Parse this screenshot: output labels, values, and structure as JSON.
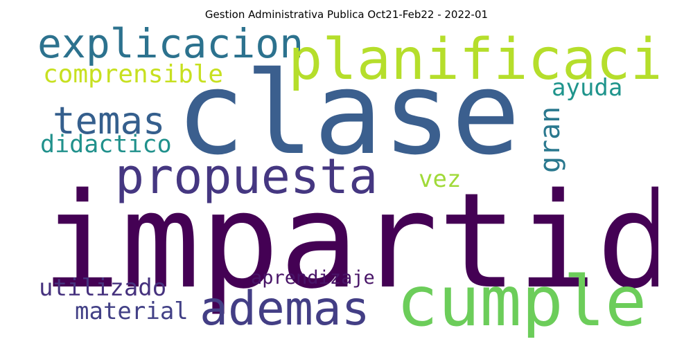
{
  "title": "Gestion Administrativa Publica Oct21-Feb22 - 2022-01",
  "words": {
    "impartida": {
      "text": "impartida",
      "color": "#440154"
    },
    "clase": {
      "text": "clase",
      "color": "#3b5f8e"
    },
    "cumple": {
      "text": "cumple",
      "color": "#6ccd5a"
    },
    "planificacion": {
      "text": "planificacion",
      "color": "#b5de2b"
    },
    "propuesta": {
      "text": "propuesta",
      "color": "#453781"
    },
    "ademas": {
      "text": "ademas",
      "color": "#433e85"
    },
    "explicacion": {
      "text": "explicacion",
      "color": "#2c728e"
    },
    "temas": {
      "text": "temas",
      "color": "#355f8d"
    },
    "comprensible": {
      "text": "comprensible",
      "color": "#c7e020"
    },
    "didactico": {
      "text": "didactico",
      "color": "#21918c"
    },
    "utilizado": {
      "text": "utilizado",
      "color": "#46327e"
    },
    "material": {
      "text": "material",
      "color": "#424086"
    },
    "ayuda": {
      "text": "ayuda",
      "color": "#1f948c"
    },
    "vez": {
      "text": "vez",
      "color": "#a0da39"
    },
    "aprendizaje": {
      "text": "aprendizaje",
      "color": "#481467"
    },
    "gran": {
      "text": "gran",
      "color": "#2a788e"
    }
  }
}
